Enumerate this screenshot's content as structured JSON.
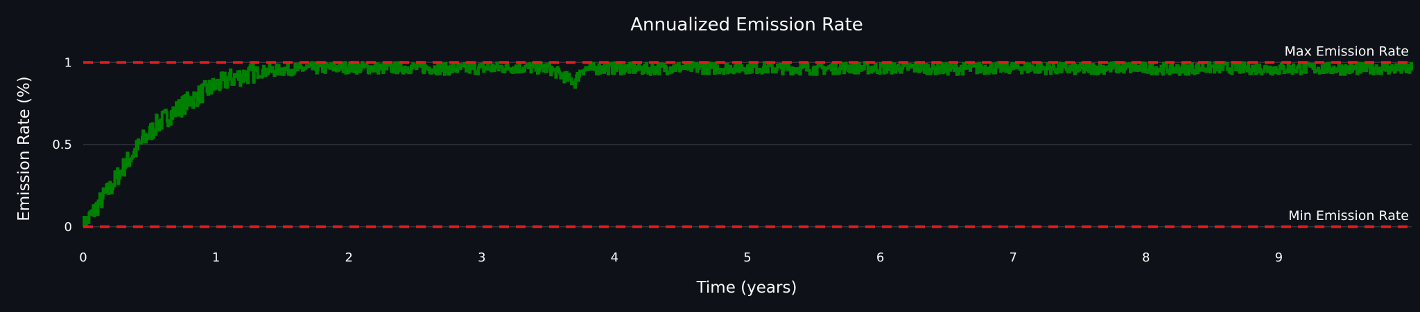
{
  "chart_data": {
    "type": "line",
    "title": "Annualized Emission Rate",
    "xlabel": "Time (years)",
    "ylabel": "Emission Rate (%)",
    "xlim": [
      0,
      10
    ],
    "ylim": [
      -0.06,
      1.06
    ],
    "x_ticks": [
      0,
      1,
      2,
      3,
      4,
      5,
      6,
      7,
      8,
      9
    ],
    "x_tick_labels": [
      "0",
      "1",
      "2",
      "3",
      "4",
      "5",
      "6",
      "7",
      "8",
      "9"
    ],
    "y_ticks": [
      0,
      0.5,
      1
    ],
    "y_tick_labels": [
      "0",
      "0.5",
      "1"
    ],
    "grid": true,
    "reference_lines": [
      {
        "label": "Max Emission Rate",
        "y": 1,
        "color": "#e31a1c",
        "style": "dashed"
      },
      {
        "label": "Min Emission Rate",
        "y": 0,
        "color": "#e31a1c",
        "style": "dashed"
      }
    ],
    "series": [
      {
        "color": "#008000",
        "description_curve": "rises from 0 toward 1 with noise, saturating near 1 after ~1.3 years",
        "x": [
          0.0,
          0.05,
          0.1,
          0.15,
          0.2,
          0.25,
          0.3,
          0.35,
          0.4,
          0.45,
          0.5,
          0.55,
          0.6,
          0.65,
          0.7,
          0.75,
          0.8,
          0.85,
          0.9,
          0.95,
          1.0,
          1.05,
          1.1,
          1.15,
          1.2,
          1.25,
          1.3,
          1.4,
          1.5,
          1.6,
          1.7,
          1.8,
          1.9,
          2.0,
          2.25,
          2.5,
          2.75,
          3.0,
          3.25,
          3.5,
          3.7,
          3.75,
          4.0,
          4.25,
          4.5,
          4.75,
          5.0,
          5.25,
          5.5,
          5.75,
          6.0,
          6.25,
          6.5,
          6.75,
          7.0,
          7.25,
          7.5,
          7.75,
          8.0,
          8.25,
          8.5,
          8.75,
          9.0,
          9.25,
          9.5,
          9.75,
          10.0
        ],
        "y": [
          0.0,
          0.06,
          0.12,
          0.18,
          0.23,
          0.3,
          0.36,
          0.42,
          0.47,
          0.53,
          0.57,
          0.62,
          0.65,
          0.68,
          0.71,
          0.74,
          0.77,
          0.79,
          0.82,
          0.84,
          0.86,
          0.88,
          0.9,
          0.91,
          0.92,
          0.93,
          0.94,
          0.95,
          0.955,
          0.96,
          0.965,
          0.965,
          0.97,
          0.97,
          0.965,
          0.97,
          0.96,
          0.965,
          0.97,
          0.965,
          0.88,
          0.96,
          0.965,
          0.96,
          0.97,
          0.965,
          0.97,
          0.965,
          0.96,
          0.97,
          0.965,
          0.97,
          0.96,
          0.965,
          0.97,
          0.965,
          0.96,
          0.97,
          0.965,
          0.96,
          0.97,
          0.965,
          0.96,
          0.965,
          0.96,
          0.965,
          0.96
        ]
      }
    ]
  }
}
